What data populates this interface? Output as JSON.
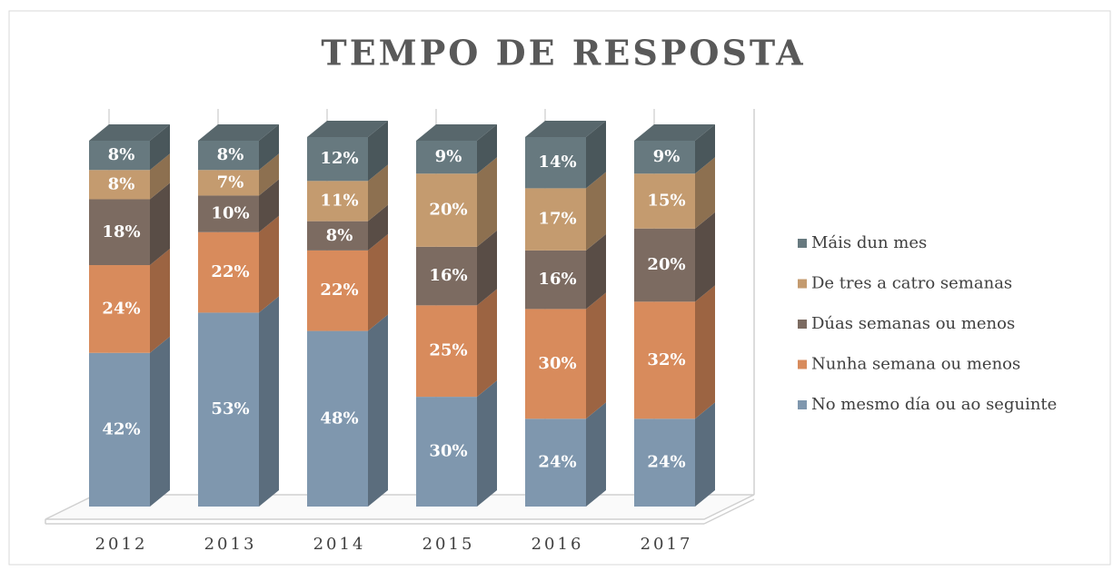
{
  "chart_data": {
    "type": "bar3d_stacked",
    "title": "TEMPO DE RESPOSTA",
    "categories": [
      "2012",
      "2013",
      "2014",
      "2015",
      "2016",
      "2017"
    ],
    "series": [
      {
        "name": "No mesmo día ou ao seguinte",
        "color": "#7f97ae",
        "values": [
          42,
          53,
          48,
          30,
          24,
          24
        ],
        "value_labels": [
          "42%",
          "53%",
          "48%",
          "30%",
          "24%",
          "24%"
        ]
      },
      {
        "name": "Nunha semana ou menos",
        "color": "#d88b5c",
        "values": [
          24,
          22,
          22,
          25,
          30,
          32
        ],
        "value_labels": [
          "24%",
          "22%",
          "22%",
          "25%",
          "30%",
          "32%"
        ]
      },
      {
        "name": "Dúas semanas ou menos",
        "color": "#7c6b61",
        "values": [
          18,
          10,
          8,
          16,
          16,
          20
        ],
        "value_labels": [
          "18%",
          "10%",
          "8%",
          "16%",
          "16%",
          "20%"
        ]
      },
      {
        "name": "De tres a catro semanas",
        "color": "#c49b6f",
        "values": [
          8,
          7,
          11,
          20,
          17,
          15
        ],
        "value_labels": [
          "8%",
          "7%",
          "11%",
          "20%",
          "17%",
          "15%"
        ]
      },
      {
        "name": "Máis dun mes",
        "color": "#67797f",
        "values": [
          8,
          8,
          12,
          9,
          14,
          9
        ],
        "value_labels": [
          "8%",
          "8%",
          "12%",
          "9%",
          "14%",
          "9%"
        ]
      }
    ],
    "legend": "right"
  }
}
